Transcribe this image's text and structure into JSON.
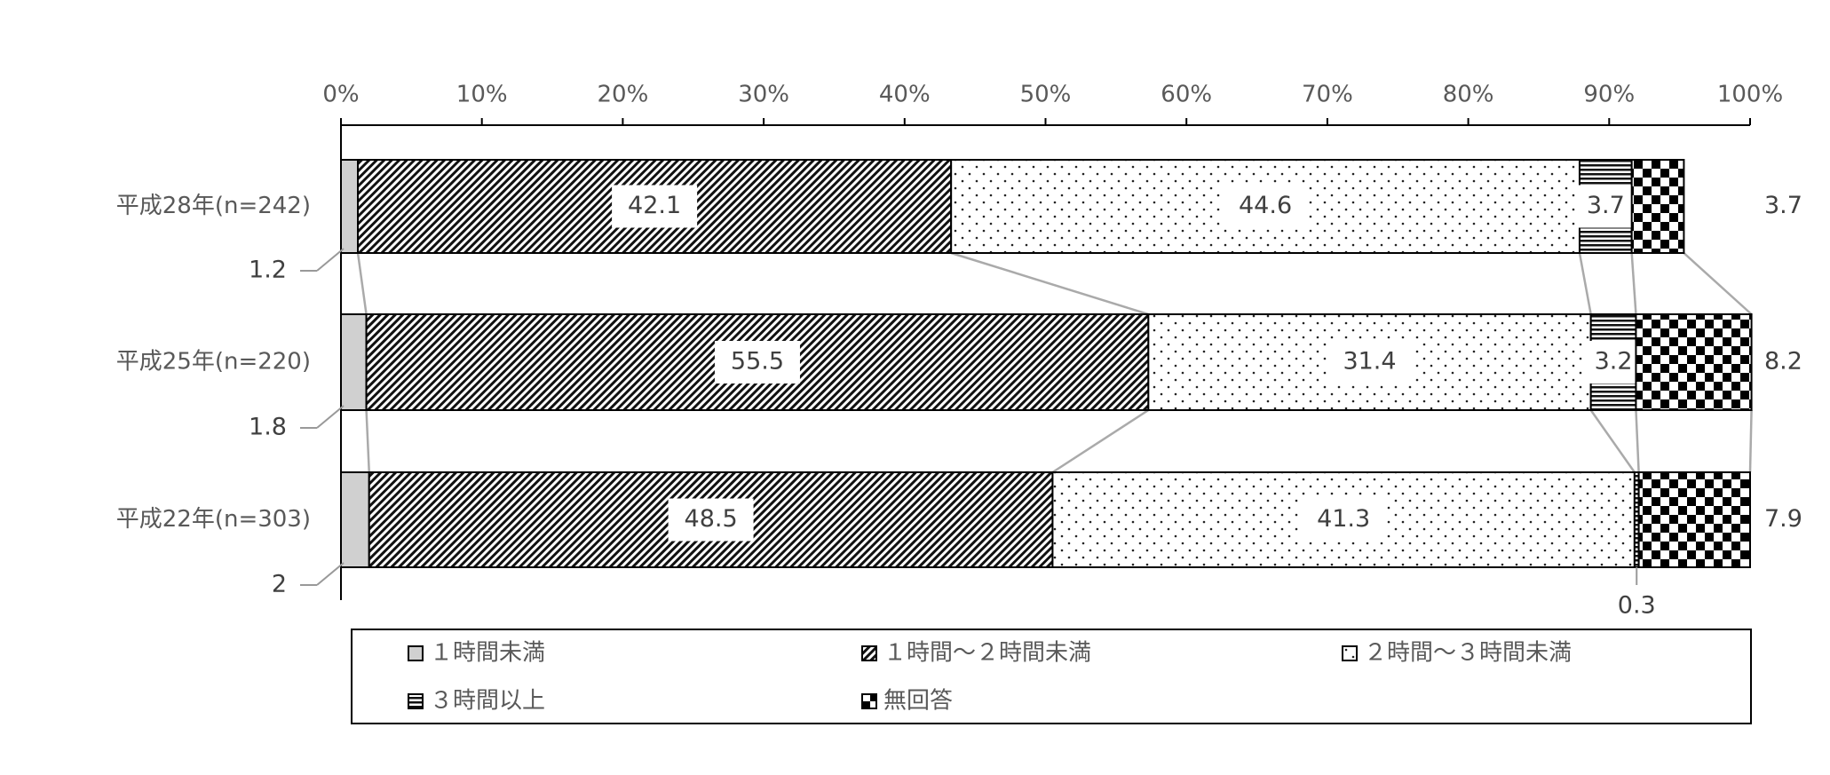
{
  "chart_data": {
    "type": "stacked-bar-horizontal",
    "categories": [
      "平成28年(n=242)",
      "平成25年(n=220)",
      "平成22年(n=303)"
    ],
    "series": [
      {
        "name": "１時間未満",
        "color": "#d0d0d0",
        "values": [
          1.2,
          1.8,
          2.0
        ]
      },
      {
        "name": "１時間～２時間未満",
        "color": "#000000",
        "values": [
          42.1,
          55.5,
          48.5
        ]
      },
      {
        "name": "２時間～３時間未満",
        "color": "#ffffff",
        "values": [
          44.6,
          31.4,
          41.3
        ]
      },
      {
        "name": "３時間以上",
        "color": "#000000",
        "values": [
          3.7,
          3.2,
          0.3
        ]
      },
      {
        "name": "無回答",
        "color": "#000000",
        "values": [
          3.7,
          8.2,
          7.9
        ]
      }
    ],
    "xlim": [
      0,
      100
    ],
    "xticks": [
      {
        "value": 0,
        "label": "0%"
      },
      {
        "value": 10,
        "label": "10%"
      },
      {
        "value": 20,
        "label": "20%"
      },
      {
        "value": 30,
        "label": "30%"
      },
      {
        "value": 40,
        "label": "40%"
      },
      {
        "value": 50,
        "label": "50%"
      },
      {
        "value": 60,
        "label": "60%"
      },
      {
        "value": 70,
        "label": "70%"
      },
      {
        "value": 80,
        "label": "80%"
      },
      {
        "value": 90,
        "label": "90%"
      },
      {
        "value": 100,
        "label": "100%"
      }
    ],
    "legend": "bottom"
  }
}
